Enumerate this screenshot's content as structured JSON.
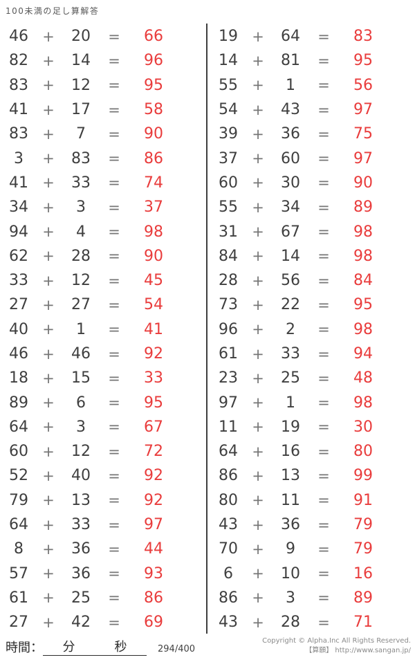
{
  "title": "100未満の足し算解答",
  "colors": {
    "answer_red": "#e93c3c",
    "problem_text": "#3f3f3f",
    "operator_gray": "#757575",
    "divider": "#3d3d3d",
    "muted_gray": "#8a8a8a"
  },
  "operators": {
    "plus": "+",
    "equals": "="
  },
  "columns": [
    {
      "problems": [
        [
          "46",
          "20",
          "66"
        ],
        [
          "82",
          "14",
          "96"
        ],
        [
          "83",
          "12",
          "95"
        ],
        [
          "41",
          "17",
          "58"
        ],
        [
          "83",
          "7",
          "90"
        ],
        [
          "3",
          "83",
          "86"
        ],
        [
          "41",
          "33",
          "74"
        ],
        [
          "34",
          "3",
          "37"
        ],
        [
          "94",
          "4",
          "98"
        ],
        [
          "62",
          "28",
          "90"
        ],
        [
          "33",
          "12",
          "45"
        ],
        [
          "27",
          "27",
          "54"
        ],
        [
          "40",
          "1",
          "41"
        ],
        [
          "46",
          "46",
          "92"
        ],
        [
          "18",
          "15",
          "33"
        ],
        [
          "89",
          "6",
          "95"
        ],
        [
          "64",
          "3",
          "67"
        ],
        [
          "60",
          "12",
          "72"
        ],
        [
          "52",
          "40",
          "92"
        ],
        [
          "79",
          "13",
          "92"
        ],
        [
          "64",
          "33",
          "97"
        ],
        [
          "8",
          "36",
          "44"
        ],
        [
          "57",
          "36",
          "93"
        ],
        [
          "61",
          "25",
          "86"
        ],
        [
          "27",
          "42",
          "69"
        ]
      ]
    },
    {
      "problems": [
        [
          "19",
          "64",
          "83"
        ],
        [
          "14",
          "81",
          "95"
        ],
        [
          "55",
          "1",
          "56"
        ],
        [
          "54",
          "43",
          "97"
        ],
        [
          "39",
          "36",
          "75"
        ],
        [
          "37",
          "60",
          "97"
        ],
        [
          "60",
          "30",
          "90"
        ],
        [
          "55",
          "34",
          "89"
        ],
        [
          "31",
          "67",
          "98"
        ],
        [
          "84",
          "14",
          "98"
        ],
        [
          "28",
          "56",
          "84"
        ],
        [
          "73",
          "22",
          "95"
        ],
        [
          "96",
          "2",
          "98"
        ],
        [
          "61",
          "33",
          "94"
        ],
        [
          "23",
          "25",
          "48"
        ],
        [
          "97",
          "1",
          "98"
        ],
        [
          "11",
          "19",
          "30"
        ],
        [
          "64",
          "16",
          "80"
        ],
        [
          "86",
          "13",
          "99"
        ],
        [
          "80",
          "11",
          "91"
        ],
        [
          "43",
          "36",
          "79"
        ],
        [
          "70",
          "9",
          "79"
        ],
        [
          "6",
          "10",
          "16"
        ],
        [
          "86",
          "3",
          "89"
        ],
        [
          "43",
          "28",
          "71"
        ]
      ]
    }
  ],
  "footer": {
    "time_label": "時間：",
    "minutes_label": "分",
    "seconds_label": "秒",
    "page_count": "294/400",
    "copyright_line1": "Copyright © Alpha.Inc All Rights Reserved.",
    "copyright_line2": "【算願】 http://www.sangan.jp/"
  }
}
